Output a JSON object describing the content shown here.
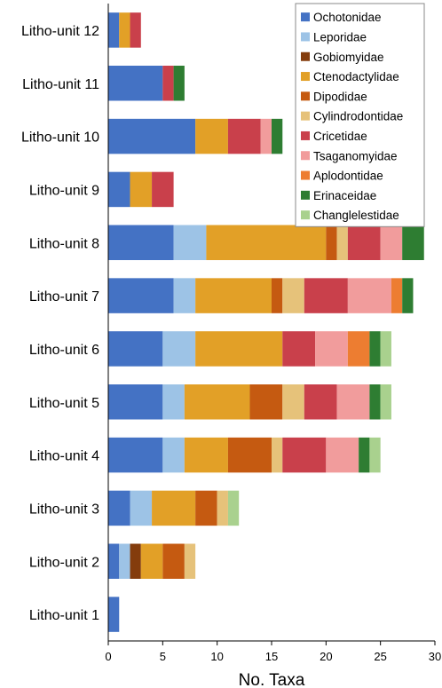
{
  "chart_data": {
    "type": "bar",
    "orientation": "horizontal",
    "stacked": true,
    "xlabel": "No. Taxa",
    "ylabel": "",
    "xlim": [
      0,
      30
    ],
    "xticks": [
      0,
      5,
      10,
      15,
      20,
      25,
      30
    ],
    "grid": false,
    "legend_position": "top-right",
    "categories": [
      "Litho-unit 12",
      "Litho-unit 11",
      "Litho-unit 10",
      "Litho-unit 9",
      "Litho-unit 8",
      "Litho-unit 7",
      "Litho-unit 6",
      "Litho-unit 5",
      "Litho-unit 4",
      "Litho-unit 3",
      "Litho-unit 2",
      "Litho-unit 1"
    ],
    "series": [
      {
        "name": "Ochotonidae",
        "color": "#4472c4",
        "values": [
          1,
          5,
          8,
          2,
          6,
          6,
          5,
          5,
          5,
          2,
          1,
          1
        ]
      },
      {
        "name": "Leporidae",
        "color": "#9dc3e6",
        "values": [
          0,
          0,
          0,
          0,
          3,
          2,
          3,
          2,
          2,
          2,
          1,
          0
        ]
      },
      {
        "name": "Gobiomyidae",
        "color": "#843c0c",
        "values": [
          0,
          0,
          0,
          0,
          0,
          0,
          0,
          0,
          0,
          0,
          1,
          0
        ]
      },
      {
        "name": "Ctenodactylidae",
        "color": "#e2a027",
        "values": [
          1,
          0,
          3,
          2,
          11,
          7,
          8,
          6,
          4,
          4,
          2,
          0
        ]
      },
      {
        "name": "Dipodidae",
        "color": "#c55a11",
        "values": [
          0,
          0,
          0,
          0,
          1,
          1,
          0,
          3,
          4,
          2,
          2,
          0
        ]
      },
      {
        "name": "Cylindrodontidae",
        "color": "#e6c27a",
        "values": [
          0,
          0,
          0,
          0,
          1,
          2,
          0,
          2,
          1,
          1,
          1,
          0
        ]
      },
      {
        "name": "Cricetidae",
        "color": "#c9404b",
        "values": [
          1,
          1,
          3,
          2,
          3,
          4,
          3,
          3,
          4,
          0,
          0,
          0
        ]
      },
      {
        "name": "Tsaganomyidae",
        "color": "#f19c9c",
        "values": [
          0,
          0,
          1,
          0,
          2,
          4,
          3,
          3,
          3,
          0,
          0,
          0
        ]
      },
      {
        "name": "Aplodontidae",
        "color": "#ed7d31",
        "values": [
          0,
          0,
          0,
          0,
          0,
          1,
          2,
          0,
          0,
          0,
          0,
          0
        ]
      },
      {
        "name": "Erinaceidae",
        "color": "#2e7d32",
        "values": [
          0,
          1,
          1,
          0,
          2,
          1,
          1,
          1,
          1,
          0,
          0,
          0
        ]
      },
      {
        "name": "Changlelestidae",
        "color": "#a9d18e",
        "values": [
          0,
          0,
          0,
          0,
          0,
          0,
          1,
          1,
          1,
          1,
          0,
          0
        ]
      }
    ]
  }
}
